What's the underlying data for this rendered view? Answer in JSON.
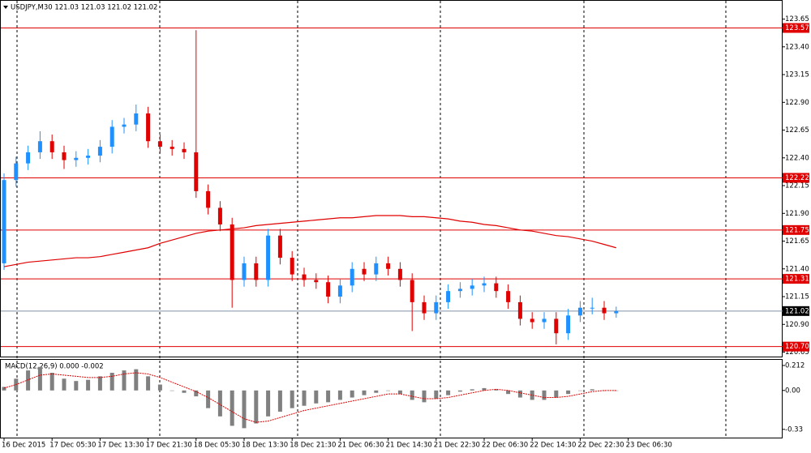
{
  "chart_data": {
    "type": "candlestick",
    "title": "USDJPY,M30  121.03 121.03 121.02 121.02",
    "up_color": "#1e90ff",
    "down_color": "#e00000",
    "ylim": [
      120.61,
      123.8
    ],
    "yticks": [
      123.65,
      {
        "value": 123.4,
        "label": "123.40"
      },
      123.15,
      {
        "value": 122.9,
        "label": "122.90"
      },
      122.65,
      {
        "value": 122.4,
        "label": "122.40"
      },
      122.15,
      {
        "value": 121.9,
        "label": "121.90"
      },
      121.65,
      {
        "value": 121.4,
        "label": "121.40"
      },
      121.15,
      {
        "value": 120.9,
        "label": "120.90"
      },
      120.65
    ],
    "levels": [
      123.57,
      122.22,
      121.75,
      121.31,
      {
        "value": 120.7,
        "label": "120.70"
      }
    ],
    "level_color": "#e00000",
    "current_price": 121.02,
    "x_labels": [
      "16 Dec 2015",
      "17 Dec 05:30",
      "17 Dec 13:30",
      "17 Dec 21:30",
      "18 Dec 05:30",
      "18 Dec 13:30",
      "18 Dec 21:30",
      "21 Dec 06:30",
      "21 Dec 14:30",
      "21 Dec 22:30",
      "22 Dec 06:30",
      "22 Dec 14:30",
      "22 Dec 22:30",
      "23 Dec 06:30"
    ],
    "ohlc": [
      [
        121.45,
        122.26,
        121.39,
        122.2
      ],
      [
        122.2,
        122.41,
        122.14,
        122.35
      ],
      [
        122.35,
        122.51,
        122.29,
        122.45
      ],
      [
        122.45,
        122.64,
        122.39,
        122.55
      ],
      [
        122.55,
        122.61,
        122.39,
        122.45
      ],
      [
        122.45,
        122.51,
        122.3,
        122.38
      ],
      [
        122.38,
        122.46,
        122.32,
        122.4
      ],
      [
        122.4,
        122.48,
        122.34,
        122.42
      ],
      [
        122.42,
        122.56,
        122.36,
        122.5
      ],
      [
        122.5,
        122.74,
        122.44,
        122.68
      ],
      [
        122.68,
        122.76,
        122.62,
        122.7
      ],
      [
        122.7,
        122.88,
        122.64,
        122.8
      ],
      [
        122.8,
        122.86,
        122.49,
        122.55
      ],
      [
        122.55,
        122.61,
        122.44,
        122.5
      ],
      [
        122.5,
        122.56,
        122.42,
        122.48
      ],
      [
        122.48,
        122.54,
        122.39,
        122.45
      ],
      [
        122.45,
        123.55,
        122.04,
        122.1
      ],
      [
        122.1,
        122.16,
        121.89,
        121.95
      ],
      [
        121.95,
        122.01,
        121.74,
        121.8
      ],
      [
        121.8,
        121.86,
        121.05,
        121.3
      ],
      [
        121.3,
        121.51,
        121.24,
        121.45
      ],
      [
        121.45,
        121.51,
        121.24,
        121.3
      ],
      [
        121.3,
        121.76,
        121.24,
        121.7
      ],
      [
        121.7,
        121.76,
        121.44,
        121.5
      ],
      [
        121.5,
        121.56,
        121.29,
        121.35
      ],
      [
        121.35,
        121.41,
        121.24,
        121.3
      ],
      [
        121.3,
        121.36,
        121.22,
        121.28
      ],
      [
        121.28,
        121.34,
        121.09,
        121.15
      ],
      [
        121.15,
        121.31,
        121.09,
        121.25
      ],
      [
        121.25,
        121.46,
        121.19,
        121.4
      ],
      [
        121.4,
        121.46,
        121.29,
        121.35
      ],
      [
        121.35,
        121.51,
        121.29,
        121.45
      ],
      [
        121.45,
        121.51,
        121.34,
        121.4
      ],
      [
        121.4,
        121.46,
        121.24,
        121.3
      ],
      [
        121.3,
        121.36,
        120.84,
        121.1
      ],
      [
        121.1,
        121.16,
        120.94,
        121.0
      ],
      [
        121.0,
        121.16,
        120.94,
        121.1
      ],
      [
        121.1,
        121.26,
        121.04,
        121.2
      ],
      [
        121.2,
        121.28,
        121.14,
        121.22
      ],
      [
        121.22,
        121.31,
        121.16,
        121.25
      ],
      [
        121.25,
        121.33,
        121.19,
        121.27
      ],
      [
        121.27,
        121.33,
        121.14,
        121.2
      ],
      [
        121.2,
        121.26,
        121.04,
        121.1
      ],
      [
        121.1,
        121.16,
        120.89,
        120.95
      ],
      [
        120.95,
        121.01,
        120.86,
        120.92
      ],
      [
        120.92,
        121.01,
        120.86,
        120.95
      ],
      [
        120.95,
        121.01,
        120.72,
        120.82
      ],
      [
        120.82,
        121.04,
        120.76,
        120.98
      ],
      [
        120.98,
        121.11,
        120.92,
        121.05
      ],
      [
        121.05,
        121.14,
        120.99,
        121.05
      ],
      [
        121.05,
        121.11,
        120.94,
        121.0
      ],
      [
        121.0,
        121.06,
        120.96,
        121.02
      ]
    ],
    "ma": [
      121.42,
      121.44,
      121.46,
      121.47,
      121.48,
      121.49,
      121.5,
      121.5,
      121.51,
      121.53,
      121.55,
      121.57,
      121.59,
      121.63,
      121.66,
      121.69,
      121.72,
      121.74,
      121.75,
      121.76,
      121.77,
      121.79,
      121.8,
      121.81,
      121.82,
      121.83,
      121.84,
      121.85,
      121.86,
      121.86,
      121.87,
      121.88,
      121.88,
      121.88,
      121.87,
      121.87,
      121.86,
      121.85,
      121.83,
      121.82,
      121.8,
      121.79,
      121.77,
      121.75,
      121.74,
      121.72,
      121.7,
      121.69,
      121.67,
      121.65,
      121.62,
      121.59
    ],
    "ma_color": "#e00000",
    "macd": {
      "label": "MACD(12,26,9) 0.000 -0.002",
      "ylim": [
        -0.4,
        0.26
      ],
      "yticks": [
        0.212,
        {
          "value": 0,
          "label": "0.00"
        },
        -0.33
      ],
      "hist_color": "#808080",
      "signal_color": "#e00000",
      "hist": [
        0.03,
        0.1,
        0.17,
        0.2,
        0.15,
        0.1,
        0.08,
        0.09,
        0.12,
        0.15,
        0.17,
        0.18,
        0.12,
        0.05,
        0.0,
        -0.02,
        -0.05,
        -0.15,
        -0.22,
        -0.3,
        -0.32,
        -0.28,
        -0.22,
        -0.18,
        -0.15,
        -0.13,
        -0.11,
        -0.1,
        -0.08,
        -0.06,
        -0.04,
        -0.02,
        0.0,
        -0.03,
        -0.08,
        -0.1,
        -0.07,
        -0.04,
        -0.01,
        0.01,
        0.02,
        0.01,
        -0.03,
        -0.06,
        -0.08,
        -0.08,
        -0.06,
        -0.03,
        0.0,
        0.01,
        0.0,
        0.0
      ],
      "signal": [
        0.02,
        0.05,
        0.09,
        0.13,
        0.14,
        0.13,
        0.12,
        0.11,
        0.11,
        0.12,
        0.14,
        0.15,
        0.14,
        0.11,
        0.07,
        0.03,
        -0.01,
        -0.06,
        -0.12,
        -0.18,
        -0.24,
        -0.27,
        -0.26,
        -0.23,
        -0.2,
        -0.17,
        -0.15,
        -0.13,
        -0.11,
        -0.09,
        -0.07,
        -0.05,
        -0.03,
        -0.03,
        -0.05,
        -0.07,
        -0.07,
        -0.06,
        -0.04,
        -0.02,
        0.0,
        0.01,
        0.0,
        -0.02,
        -0.04,
        -0.06,
        -0.06,
        -0.05,
        -0.03,
        -0.01,
        0.0,
        0.0
      ]
    }
  }
}
